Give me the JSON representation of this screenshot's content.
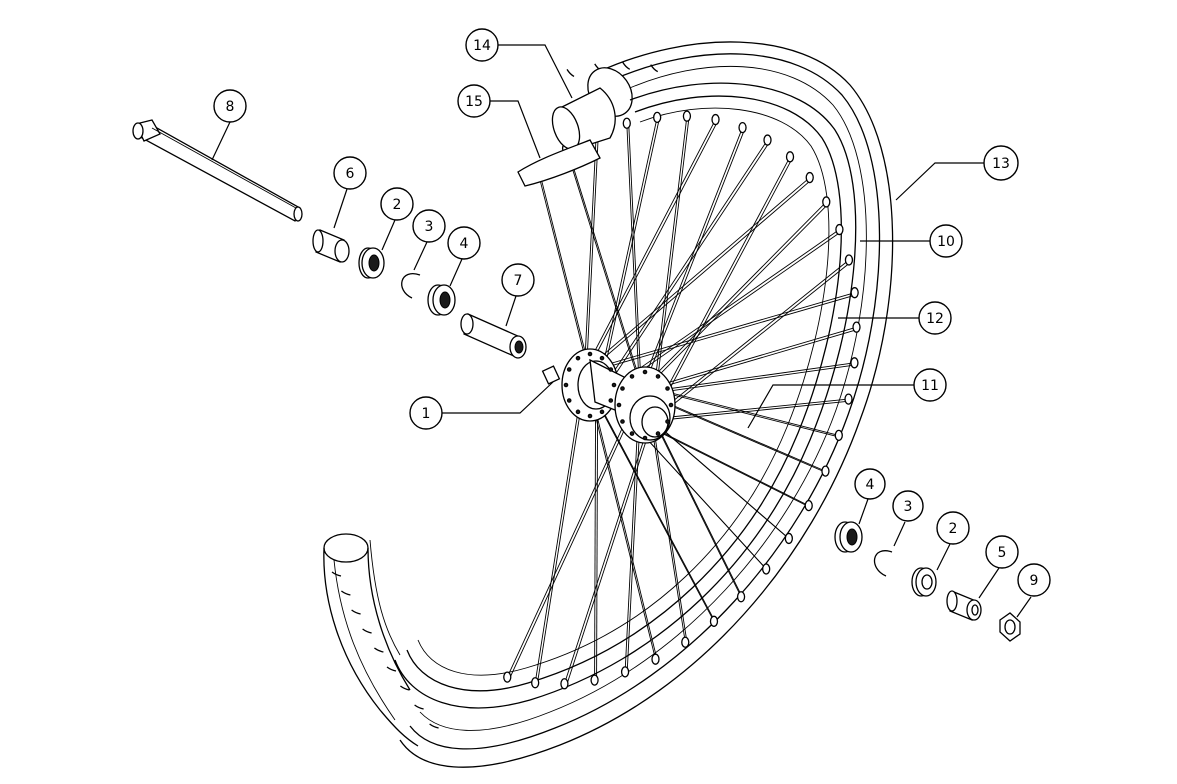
{
  "diagram": {
    "callouts": [
      {
        "key": "c14",
        "label": "14"
      },
      {
        "key": "c15",
        "label": "15"
      },
      {
        "key": "c8",
        "label": "8"
      },
      {
        "key": "c6",
        "label": "6"
      },
      {
        "key": "c2a",
        "label": "2"
      },
      {
        "key": "c3a",
        "label": "3"
      },
      {
        "key": "c4a",
        "label": "4"
      },
      {
        "key": "c7",
        "label": "7"
      },
      {
        "key": "c1",
        "label": "1"
      },
      {
        "key": "c13",
        "label": "13"
      },
      {
        "key": "c10",
        "label": "10"
      },
      {
        "key": "c12",
        "label": "12"
      },
      {
        "key": "c11",
        "label": "11"
      },
      {
        "key": "c4b",
        "label": "4"
      },
      {
        "key": "c3b",
        "label": "3"
      },
      {
        "key": "c2b",
        "label": "2"
      },
      {
        "key": "c5",
        "label": "5"
      },
      {
        "key": "c9",
        "label": "9"
      }
    ]
  }
}
